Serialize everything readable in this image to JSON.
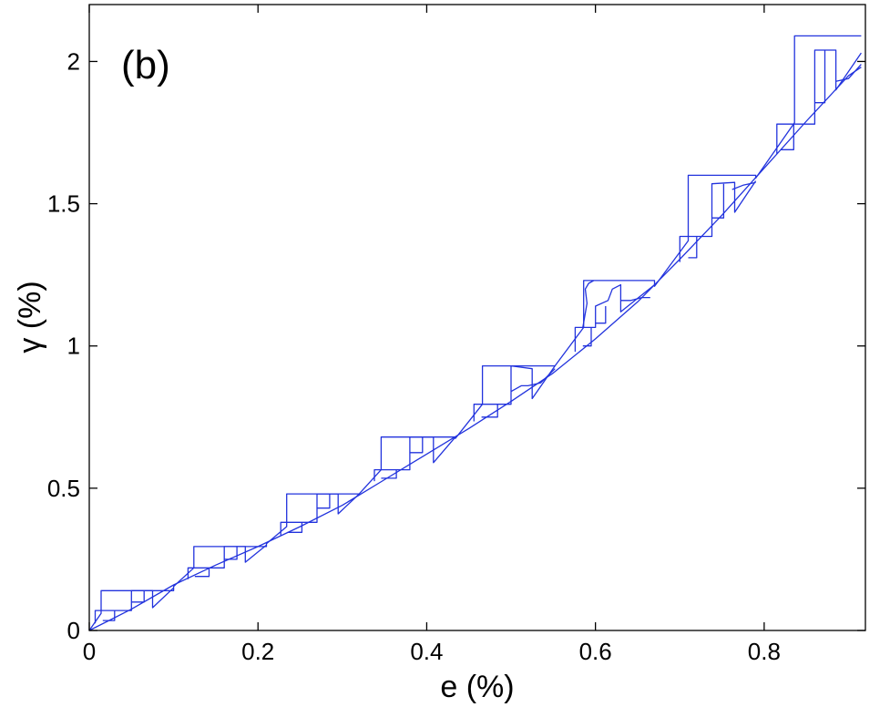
{
  "chart_data": {
    "type": "line",
    "panel_label": "(b)",
    "title": "",
    "xlabel": "e (%)",
    "ylabel": "γ (%)",
    "xlim": [
      0,
      0.92
    ],
    "ylim": [
      0,
      2.2
    ],
    "xticks": [
      0,
      0.2,
      0.4,
      0.6,
      0.8
    ],
    "xtick_labels": [
      "0",
      "0.2",
      "0.4",
      "0.6",
      "0.8"
    ],
    "yticks": [
      0,
      0.5,
      1,
      1.5,
      2
    ],
    "ytick_labels": [
      "0",
      "0.5",
      "1",
      "1.5",
      "2"
    ],
    "grid": false,
    "series_color": "#2233dd",
    "series": [
      {
        "x": [
          0,
          0.05,
          0.1,
          0.15,
          0.2,
          0.25,
          0.3,
          0.35,
          0.4,
          0.45,
          0.5,
          0.55,
          0.6,
          0.65,
          0.7,
          0.75,
          0.8,
          0.85,
          0.9,
          0.915
        ],
        "y": [
          0,
          0.075,
          0.16,
          0.23,
          0.295,
          0.365,
          0.44,
          0.53,
          0.62,
          0.71,
          0.805,
          0.905,
          1.025,
          1.155,
          1.305,
          1.46,
          1.625,
          1.79,
          1.95,
          1.98
        ]
      },
      {
        "x": [
          0,
          0.014,
          0.014,
          0.1,
          0.1,
          0.124,
          0.124,
          0.21,
          0.21,
          0.234,
          0.234,
          0.32,
          0.32,
          0.346,
          0.346,
          0.434,
          0.434,
          0.466,
          0.466,
          0.552,
          0.552,
          0.586,
          0.586,
          0.67,
          0.67,
          0.71,
          0.71,
          0.79,
          0.79,
          0.836,
          0.836,
          0.915
        ],
        "y": [
          0,
          0.06,
          0.14,
          0.14,
          0.155,
          0.22,
          0.295,
          0.295,
          0.305,
          0.365,
          0.48,
          0.48,
          0.48,
          0.565,
          0.68,
          0.68,
          0.675,
          0.795,
          0.93,
          0.93,
          0.93,
          1.065,
          1.23,
          1.23,
          1.21,
          1.37,
          1.6,
          1.6,
          1.59,
          1.785,
          2.09,
          2.09
        ]
      },
      {
        "x": [
          0.007,
          0.007,
          0.05,
          0.05,
          0.075,
          0.075,
          0.1
        ],
        "y": [
          0.025,
          0.07,
          0.07,
          0.14,
          0.14,
          0.08,
          0.15
        ]
      },
      {
        "x": [
          0.016,
          0.03,
          0.03
        ],
        "y": [
          0.035,
          0.035,
          0.07
        ]
      },
      {
        "x": [
          0.05,
          0.065,
          0.065
        ],
        "y": [
          0.1,
          0.1,
          0.14
        ]
      },
      {
        "x": [
          0.117,
          0.117,
          0.16,
          0.16,
          0.185,
          0.185,
          0.21
        ],
        "y": [
          0.18,
          0.22,
          0.22,
          0.295,
          0.295,
          0.24,
          0.3
        ]
      },
      {
        "x": [
          0.125,
          0.142,
          0.142
        ],
        "y": [
          0.19,
          0.19,
          0.22
        ]
      },
      {
        "x": [
          0.16,
          0.175,
          0.175
        ],
        "y": [
          0.25,
          0.25,
          0.295
        ]
      },
      {
        "x": [
          0.227,
          0.227,
          0.27,
          0.27,
          0.295,
          0.295,
          0.32
        ],
        "y": [
          0.335,
          0.38,
          0.38,
          0.48,
          0.48,
          0.41,
          0.48
        ]
      },
      {
        "x": [
          0.235,
          0.252,
          0.252
        ],
        "y": [
          0.345,
          0.345,
          0.38
        ]
      },
      {
        "x": [
          0.27,
          0.285,
          0.285
        ],
        "y": [
          0.43,
          0.43,
          0.48
        ]
      },
      {
        "x": [
          0.338,
          0.338,
          0.38,
          0.38,
          0.408,
          0.408,
          0.434
        ],
        "y": [
          0.525,
          0.565,
          0.565,
          0.68,
          0.68,
          0.59,
          0.68
        ]
      },
      {
        "x": [
          0.346,
          0.364,
          0.364
        ],
        "y": [
          0.535,
          0.535,
          0.565
        ]
      },
      {
        "x": [
          0.38,
          0.395,
          0.395
        ],
        "y": [
          0.625,
          0.625,
          0.68
        ]
      },
      {
        "x": [
          0.456,
          0.456,
          0.5,
          0.5,
          0.525,
          0.525,
          0.552
        ],
        "y": [
          0.735,
          0.795,
          0.795,
          0.93,
          0.92,
          0.815,
          0.93
        ]
      },
      {
        "x": [
          0.465,
          0.484,
          0.484
        ],
        "y": [
          0.75,
          0.75,
          0.795
        ]
      },
      {
        "x": [
          0.5,
          0.512,
          0.52,
          0.535,
          0.552
        ],
        "y": [
          0.84,
          0.86,
          0.86,
          0.87,
          0.92
        ]
      },
      {
        "x": [
          0.576,
          0.576,
          0.6,
          0.6,
          0.615,
          0.62,
          0.63,
          0.63,
          0.67
        ],
        "y": [
          0.98,
          1.065,
          1.065,
          1.14,
          1.16,
          1.2,
          1.215,
          1.12,
          1.215
        ]
      },
      {
        "x": [
          0.585,
          0.595,
          0.595
        ],
        "y": [
          1.0,
          1.0,
          1.065
        ]
      },
      {
        "x": [
          0.6,
          0.612,
          0.612
        ],
        "y": [
          1.08,
          1.08,
          1.14
        ]
      },
      {
        "x": [
          0.585,
          0.59,
          0.588,
          0.592,
          0.598
        ],
        "y": [
          1.065,
          1.15,
          1.2,
          1.22,
          1.23
        ]
      },
      {
        "x": [
          0.63,
          0.642,
          0.655,
          0.665
        ],
        "y": [
          1.16,
          1.16,
          1.17,
          1.17
        ]
      },
      {
        "x": [
          0.7,
          0.7,
          0.738,
          0.738,
          0.765,
          0.765,
          0.79
        ],
        "y": [
          1.295,
          1.385,
          1.385,
          1.57,
          1.575,
          1.47,
          1.58
        ]
      },
      {
        "x": [
          0.71,
          0.72,
          0.72
        ],
        "y": [
          1.31,
          1.31,
          1.385
        ]
      },
      {
        "x": [
          0.738,
          0.752,
          0.752
        ],
        "y": [
          1.45,
          1.45,
          1.57
        ]
      },
      {
        "x": [
          0.762,
          0.775,
          0.79
        ],
        "y": [
          1.55,
          1.565,
          1.575
        ]
      },
      {
        "x": [
          0.815,
          0.815,
          0.86,
          0.86,
          0.885,
          0.885,
          0.915
        ],
        "y": [
          1.675,
          1.78,
          1.78,
          2.04,
          2.04,
          1.9,
          2.03
        ]
      },
      {
        "x": [
          0.82,
          0.835,
          0.835
        ],
        "y": [
          1.69,
          1.69,
          1.78
        ]
      },
      {
        "x": [
          0.86,
          0.872,
          0.872
        ],
        "y": [
          1.855,
          1.855,
          2.04
        ]
      },
      {
        "x": [
          0.885,
          0.9,
          0.915
        ],
        "y": [
          1.93,
          1.94,
          1.99
        ]
      }
    ]
  }
}
